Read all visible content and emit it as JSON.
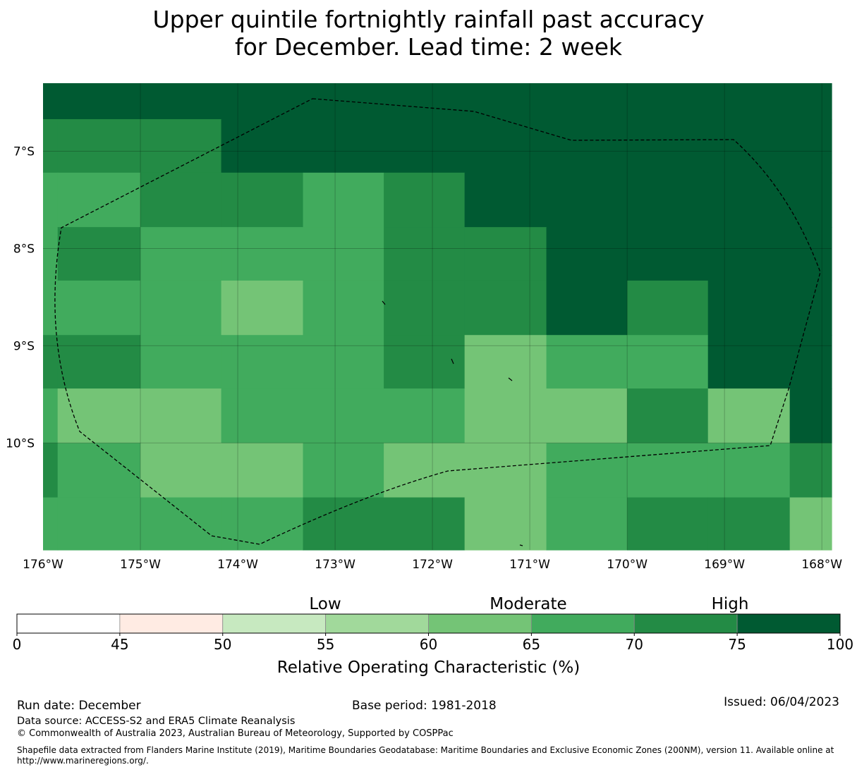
{
  "title": {
    "line1": "Upper quintile fortnightly rainfall past accuracy",
    "line2": "for December. Lead time: 2 week"
  },
  "chart_data": {
    "type": "heatmap",
    "title": "Upper quintile fortnightly rainfall past accuracy for December. Lead time: 2 week",
    "xlabel": "",
    "ylabel": "",
    "x_ticks": [
      "176°W",
      "175°W",
      "174°W",
      "173°W",
      "172°W",
      "171°W",
      "170°W",
      "169°W",
      "168°W"
    ],
    "y_ticks": [
      "7°S",
      "8°S",
      "9°S",
      "10°S"
    ],
    "x_range_lon": [
      -176.0,
      -167.9
    ],
    "y_range_lat": [
      -6.3,
      -11.1
    ],
    "col_edges_lon": [
      -176.0,
      -175.85,
      -175.0,
      -174.17,
      -173.33,
      -172.5,
      -171.67,
      -170.83,
      -170.0,
      -169.17,
      -168.33,
      -167.9
    ],
    "row_edges_lat": [
      -6.3,
      -6.67,
      -7.22,
      -7.78,
      -8.33,
      -8.89,
      -9.44,
      -10.0,
      -10.56,
      -11.1
    ],
    "grid_values": [
      [
        77,
        77,
        77,
        77,
        77,
        77,
        77,
        77,
        77,
        77,
        77
      ],
      [
        72,
        72,
        72,
        77,
        77,
        77,
        77,
        77,
        77,
        77,
        77
      ],
      [
        67,
        67,
        72,
        72,
        67,
        72,
        77,
        77,
        77,
        77,
        77
      ],
      [
        67,
        72,
        67,
        67,
        67,
        72,
        72,
        77,
        77,
        77,
        77
      ],
      [
        67,
        67,
        67,
        62,
        67,
        72,
        72,
        77,
        72,
        77,
        77
      ],
      [
        72,
        72,
        67,
        67,
        67,
        72,
        62,
        67,
        67,
        77,
        77
      ],
      [
        67,
        62,
        62,
        67,
        67,
        67,
        62,
        62,
        72,
        62,
        77
      ],
      [
        72,
        67,
        62,
        62,
        67,
        62,
        62,
        67,
        67,
        67,
        72
      ],
      [
        67,
        67,
        67,
        67,
        72,
        72,
        62,
        67,
        72,
        72,
        62
      ]
    ],
    "colorbar": {
      "boundaries": [
        0,
        45,
        50,
        55,
        60,
        65,
        70,
        75,
        100
      ],
      "tick_labels": [
        "0",
        "45",
        "50",
        "55",
        "60",
        "65",
        "70",
        "75",
        "100"
      ],
      "colors": [
        "#ffffff",
        "#ffebe3",
        "#c7e9c0",
        "#a1d99b",
        "#74c476",
        "#41ab5d",
        "#238b45",
        "#005a32"
      ],
      "category_labels": [
        "Low",
        "Moderate",
        "High"
      ],
      "label": "Relative Operating Characteristic (%)"
    }
  },
  "footer": {
    "run_date": "Run date: December",
    "base_period": "Base period: 1981-2018",
    "issued": "Issued: 06/04/2023",
    "data_source": "Data source: ACCESS-S2 and ERA5 Climate Reanalysis",
    "copyright": "© Commonwealth of Australia 2023, Australian Bureau of Meteorology, Supported by COSPPac",
    "shapefile_line1": "Shapefile data extracted from Flanders Marine Institute (2019), Maritime Boundaries Geodatabase: Maritime Boundaries and Exclusive Economic Zones (200NM), version 11. Available online at",
    "shapefile_line2": "http://www.marineregions.org/."
  }
}
